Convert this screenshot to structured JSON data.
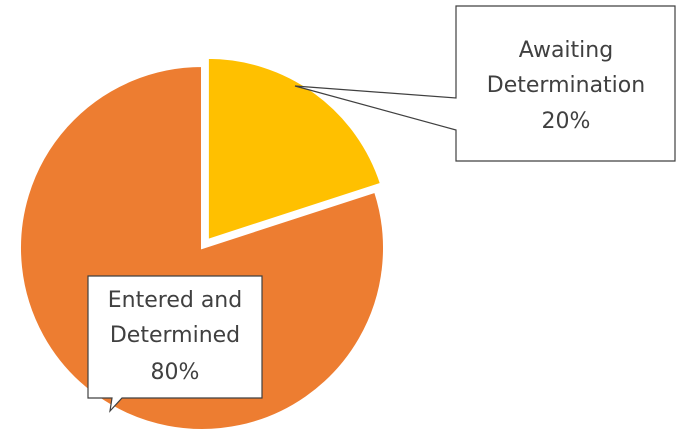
{
  "chart_data": {
    "type": "pie",
    "slices": [
      {
        "label_lines": [
          "Awaiting",
          "Determination"
        ],
        "percent_text": "20%",
        "value": 20,
        "color": "#FFC000",
        "exploded": true
      },
      {
        "label_lines": [
          "Entered and",
          "Determined"
        ],
        "percent_text": "80%",
        "value": 80,
        "color": "#ED7D31",
        "exploded": false
      }
    ],
    "title": "",
    "legend": "none",
    "data_labels": "callouts"
  },
  "colors": {
    "callout_border": "#404040",
    "callout_fill": "#ffffff",
    "text": "#404040",
    "slice_border": "#ffffff"
  }
}
